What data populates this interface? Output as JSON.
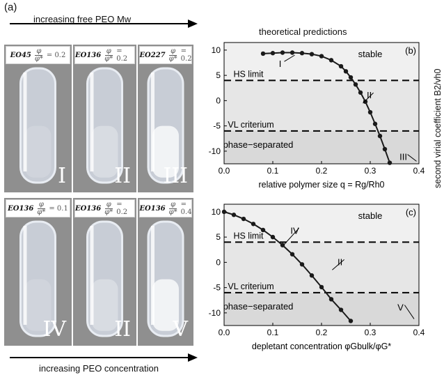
{
  "figure_label": "(a)",
  "top_arrow_text": "increasing free PEO Mw",
  "bottom_arrow_text": "increasing PEO concentration",
  "theory_title": "theoretical predictions",
  "tubes": [
    {
      "sample": "EO45",
      "ratio": "0.2",
      "roman": "I",
      "row": 0,
      "col": 0
    },
    {
      "sample": "EO136",
      "ratio": "0.2",
      "roman": "II",
      "row": 0,
      "col": 1
    },
    {
      "sample": "EO227",
      "ratio": "0.2",
      "roman": "III",
      "row": 0,
      "col": 2
    },
    {
      "sample": "EO136",
      "ratio": "0.1",
      "roman": "IV",
      "row": 1,
      "col": 0
    },
    {
      "sample": "EO136",
      "ratio": "0.2",
      "roman": "II",
      "row": 1,
      "col": 1
    },
    {
      "sample": "EO136",
      "ratio": "0.4",
      "roman": "V",
      "row": 1,
      "col": 2
    }
  ],
  "frac_num": "φ",
  "frac_den": "φ*",
  "shared_ylabel": "second virial coefficient B2/vh0",
  "colors": {
    "stable": "#f0f0f0",
    "separated": "#d9d9d9",
    "curve": "#1a1a1a"
  },
  "chart_data": [
    {
      "type": "line",
      "panel": "(b)",
      "xlabel": "relative polymer size q = Rg/Rh0",
      "xlim": [
        0,
        0.4
      ],
      "ylim": [
        -12.5,
        11.5
      ],
      "xticks": [
        "0.0",
        "0.1",
        "0.2",
        "0.3",
        "0.4"
      ],
      "yticks": [
        "-10",
        "-5",
        "0",
        "5",
        "10"
      ],
      "hs_limit": 4,
      "vl_criterium": -6,
      "region_labels": {
        "stable": "stable",
        "separated": "phase−separated",
        "hs": "HS limit",
        "vl": "VL criterium"
      },
      "annotations": [
        {
          "text": "I",
          "x": 0.115,
          "y": 7.2,
          "to_x": 0.145,
          "to_y": 9.0
        },
        {
          "text": "II",
          "x": 0.298,
          "y": 1.0,
          "to_x": 0.285,
          "to_y": -0.5
        },
        {
          "text": "III",
          "x": 0.368,
          "y": -11.2,
          "to_x": 0.395,
          "to_y": -12.0
        }
      ],
      "x": [
        0.08,
        0.1,
        0.12,
        0.14,
        0.16,
        0.18,
        0.2,
        0.22,
        0.24,
        0.25,
        0.26,
        0.27,
        0.28,
        0.29,
        0.3,
        0.31,
        0.32,
        0.33,
        0.34
      ],
      "y": [
        9.3,
        9.4,
        9.5,
        9.5,
        9.4,
        9.2,
        8.8,
        8.0,
        6.8,
        5.8,
        4.6,
        3.2,
        1.6,
        -0.2,
        -2.3,
        -4.6,
        -7.0,
        -9.6,
        -12.3
      ]
    },
    {
      "type": "line",
      "panel": "(c)",
      "xlabel": "depletant concentration φGbulk/φG*",
      "xlim": [
        0,
        0.4
      ],
      "ylim": [
        -12.5,
        11.5
      ],
      "xticks": [
        "0.0",
        "0.1",
        "0.2",
        "0.3",
        "0.4"
      ],
      "yticks": [
        "-10",
        "-5",
        "0",
        "5",
        "10"
      ],
      "hs_limit": 4,
      "vl_criterium": -6,
      "region_labels": {
        "stable": "stable",
        "separated": "phase−separated",
        "hs": "HS limit",
        "vl": "VL criterium"
      },
      "annotations": [
        {
          "text": "IV",
          "x": 0.145,
          "y": 6.2,
          "to_x": 0.123,
          "to_y": 3.5
        },
        {
          "text": "II",
          "x": 0.238,
          "y": 0.0,
          "to_x": 0.222,
          "to_y": -1.5
        },
        {
          "text": "V",
          "x": 0.362,
          "y": -9.0,
          "to_x": 0.39,
          "to_y": -11.2
        }
      ],
      "x": [
        0.0,
        0.02,
        0.04,
        0.06,
        0.08,
        0.1,
        0.12,
        0.14,
        0.16,
        0.18,
        0.2,
        0.22,
        0.24,
        0.26
      ],
      "y": [
        10.0,
        9.4,
        8.6,
        7.6,
        6.4,
        5.0,
        3.4,
        1.6,
        -0.4,
        -2.6,
        -4.9,
        -7.3,
        -9.4,
        -11.6
      ]
    }
  ]
}
